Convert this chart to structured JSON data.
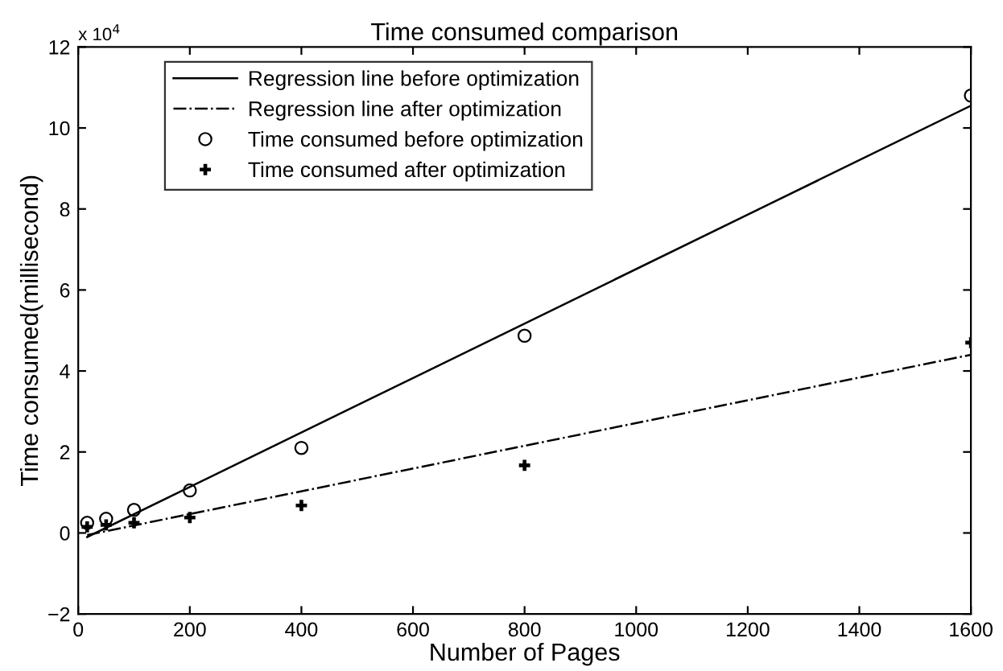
{
  "chart_data": {
    "type": "scatter",
    "title": "Time consumed comparison",
    "xlabel": "Number of Pages",
    "ylabel": "Time consumed(millisecond)",
    "annotations": [
      "x 10$^{4}$"
    ],
    "series": [
      {
        "name": "Regression line before optimization",
        "type": "line",
        "line_style": "solid",
        "color": "#000000",
        "x": [
          16,
          1600
        ],
        "values": [
          -0.1,
          10.55
        ]
      },
      {
        "name": "Regression line after optimization",
        "type": "line",
        "line_style": "dashdot",
        "color": "#000000",
        "x": [
          16,
          1600
        ],
        "values": [
          -0.05,
          4.4
        ]
      },
      {
        "name": "Time consumed before optimization",
        "marker": "circle",
        "color": "#000000",
        "x": [
          16,
          50,
          100,
          200,
          400,
          800,
          1600
        ],
        "values": [
          0.25,
          0.35,
          0.57,
          1.05,
          2.1,
          4.87,
          10.8
        ]
      },
      {
        "name": "Time consumed after optimization",
        "marker": "cross",
        "color": "#000000",
        "x": [
          16,
          50,
          100,
          200,
          400,
          800,
          1600
        ],
        "values": [
          0.15,
          0.2,
          0.25,
          0.38,
          0.68,
          1.67,
          4.7
        ]
      }
    ],
    "xlim": [
      0,
      1600
    ],
    "xticks": [
      0,
      200,
      400,
      600,
      800,
      1000,
      1200,
      1400,
      1600
    ],
    "ylim": [
      -2,
      12
    ],
    "yticks": [
      {
        "value": -2,
        "label": "−2"
      },
      0,
      2,
      4,
      6,
      8,
      10,
      12
    ],
    "grid": false,
    "legend": "top left"
  }
}
